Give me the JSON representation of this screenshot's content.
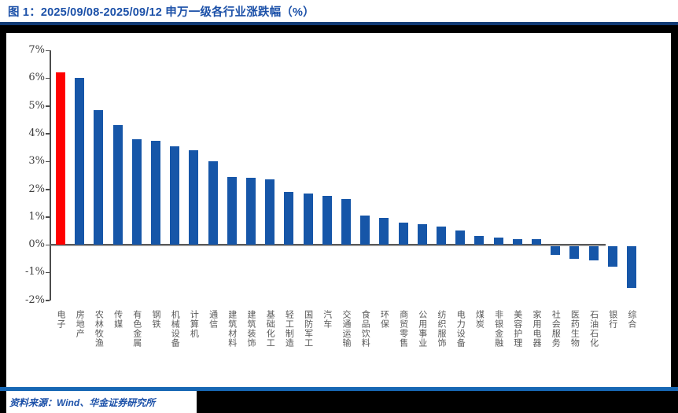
{
  "header": {
    "title": "图 1：2025/09/08-2025/09/12 申万一级各行业涨跌幅（%）"
  },
  "footer": {
    "source": "资料来源：Wind、华金证券研究所"
  },
  "colors": {
    "accent_blue": "#1B50A8",
    "title_rule": "#113A74",
    "bottom_rule": "#1767B4",
    "bar_default": "#1656A8",
    "bar_highlight": "#FF0000",
    "axis_gray": "#595959"
  },
  "chart_data": {
    "type": "bar",
    "title": "2025/09/08-2025/09/12 申万一级各行业涨跌幅（%）",
    "xlabel": "",
    "ylabel": "",
    "ylim": [
      -2,
      7
    ],
    "grid": false,
    "legend": "none",
    "yticks": [
      "7%",
      "6%",
      "5%",
      "4%",
      "3%",
      "2%",
      "1%",
      "0%",
      "-1%",
      "-2%"
    ],
    "highlight_category": "电子",
    "highlight_index": 0,
    "categories": [
      "电子",
      "房地产",
      "农林牧渔",
      "传媒",
      "有色金属",
      "钢铁",
      "机械设备",
      "计算机",
      "通信",
      "建筑材料",
      "建筑装饰",
      "基础化工",
      "轻工制造",
      "国防军工",
      "汽车",
      "交通运输",
      "食品饮料",
      "环保",
      "商贸零售",
      "公用事业",
      "纺织服饰",
      "电力设备",
      "煤炭",
      "非银金融",
      "美容护理",
      "家用电器",
      "社会服务",
      "医药生物",
      "石油石化",
      "银行",
      "综合"
    ],
    "values": [
      6.2,
      6.0,
      4.85,
      4.3,
      3.8,
      3.75,
      3.55,
      3.4,
      3.0,
      2.45,
      2.4,
      2.35,
      1.9,
      1.85,
      1.75,
      1.65,
      1.05,
      0.95,
      0.8,
      0.75,
      0.65,
      0.5,
      0.3,
      0.25,
      0.2,
      0.2,
      -0.3,
      -0.45,
      -0.5,
      -0.75,
      -1.5
    ]
  }
}
